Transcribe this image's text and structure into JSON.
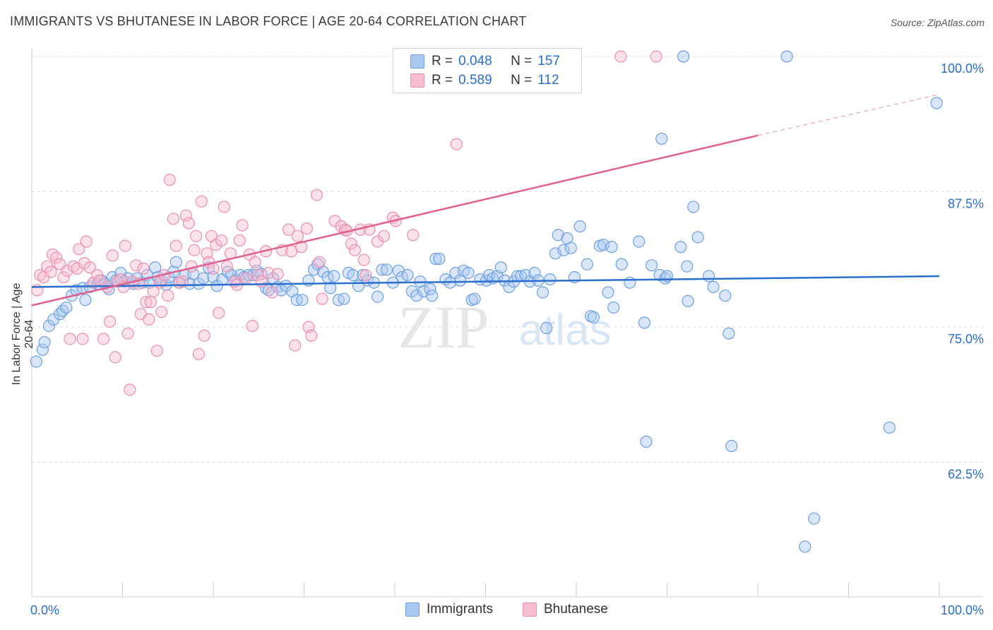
{
  "title": "IMMIGRANTS VS BHUTANESE IN LABOR FORCE | AGE 20-64 CORRELATION CHART",
  "source": "Source: ZipAtlas.com",
  "watermark": {
    "zip": "ZIP",
    "atlas": "atlas"
  },
  "colors": {
    "immigrants_fill": "#a9c8f0",
    "immigrants_stroke": "#6e9fe0",
    "immigrants_line": "#2a6fcf",
    "bhutanese_fill": "#f6bcd0",
    "bhutanese_stroke": "#ea8eb0",
    "bhutanese_line": "#e0608f",
    "tick_label": "#2a6fcf",
    "grid": "#dddddd"
  },
  "legend": {
    "r_label": "R =",
    "n_label": "N =",
    "rows": [
      {
        "r": "0.048",
        "n": "157",
        "series": "immigrants"
      },
      {
        "r": "0.589",
        "n": "112",
        "series": "bhutanese"
      }
    ]
  },
  "bottom_legend": [
    "Immigrants",
    "Bhutanese"
  ],
  "chart_data": {
    "type": "scatter",
    "ylabel": "In Labor Force | Age 20-64",
    "xlim": [
      0,
      100
    ],
    "ylim": [
      50,
      102
    ],
    "x_tick_labels": [
      "0.0%",
      "100.0%"
    ],
    "y_ticks": [
      62.5,
      75.0,
      87.5,
      100.0
    ],
    "y_tick_labels": [
      "62.5%",
      "75.0%",
      "87.5%",
      "100.0%"
    ],
    "legend_position": "top-center",
    "series": [
      {
        "name": "Immigrants",
        "trend": {
          "x0": 0,
          "y0": 78.7,
          "x1": 100,
          "y1": 79.7
        },
        "points": [
          [
            0.5,
            71.8
          ],
          [
            1.2,
            72.9
          ],
          [
            1.4,
            73.6
          ],
          [
            1.9,
            75.1
          ],
          [
            2.4,
            75.7
          ],
          [
            3.1,
            76.2
          ],
          [
            3.4,
            76.5
          ],
          [
            3.8,
            76.8
          ],
          [
            4.4,
            77.9
          ],
          [
            4.9,
            78.4
          ],
          [
            5.6,
            78.6
          ],
          [
            5.9,
            77.5
          ],
          [
            6.4,
            78.7
          ],
          [
            6.8,
            79.1
          ],
          [
            7.3,
            79.0
          ],
          [
            7.7,
            79.3
          ],
          [
            8.1,
            79.0
          ],
          [
            8.5,
            78.5
          ],
          [
            8.9,
            79.6
          ],
          [
            9.3,
            79.3
          ],
          [
            9.8,
            80.0
          ],
          [
            10.2,
            79.2
          ],
          [
            10.6,
            79.5
          ],
          [
            11.2,
            79.0
          ],
          [
            11.6,
            79.5
          ],
          [
            12.2,
            79.1
          ],
          [
            12.7,
            79.8
          ],
          [
            13.0,
            79.1
          ],
          [
            13.6,
            80.5
          ],
          [
            13.9,
            79.6
          ],
          [
            14.3,
            79.3
          ],
          [
            14.8,
            78.9
          ],
          [
            15.1,
            79.6
          ],
          [
            15.6,
            80.1
          ],
          [
            15.9,
            81.0
          ],
          [
            16.3,
            79.1
          ],
          [
            16.9,
            79.8
          ],
          [
            17.4,
            79.0
          ],
          [
            17.8,
            79.9
          ],
          [
            18.4,
            79.0
          ],
          [
            18.9,
            79.5
          ],
          [
            19.5,
            80.5
          ],
          [
            20.0,
            79.6
          ],
          [
            20.4,
            78.8
          ],
          [
            21.0,
            79.4
          ],
          [
            21.6,
            80.1
          ],
          [
            22.0,
            79.8
          ],
          [
            22.5,
            79.3
          ],
          [
            23.0,
            79.8
          ],
          [
            23.4,
            79.6
          ],
          [
            23.9,
            79.8
          ],
          [
            24.4,
            79.8
          ],
          [
            24.8,
            80.2
          ],
          [
            25.3,
            79.9
          ],
          [
            25.8,
            78.6
          ],
          [
            26.1,
            78.4
          ],
          [
            26.6,
            79.5
          ],
          [
            27.1,
            78.7
          ],
          [
            27.5,
            78.4
          ],
          [
            28.0,
            78.8
          ],
          [
            28.7,
            78.3
          ],
          [
            29.2,
            77.5
          ],
          [
            29.8,
            77.5
          ],
          [
            30.5,
            79.3
          ],
          [
            31.1,
            80.3
          ],
          [
            31.5,
            80.8
          ],
          [
            32.1,
            80.1
          ],
          [
            32.6,
            79.6
          ],
          [
            32.9,
            78.6
          ],
          [
            33.3,
            79.7
          ],
          [
            33.8,
            77.5
          ],
          [
            34.4,
            77.6
          ],
          [
            34.9,
            80.0
          ],
          [
            35.4,
            79.8
          ],
          [
            36.0,
            78.8
          ],
          [
            36.5,
            79.8
          ],
          [
            37.0,
            79.3
          ],
          [
            37.7,
            79.1
          ],
          [
            38.1,
            77.8
          ],
          [
            38.6,
            80.3
          ],
          [
            39.1,
            80.3
          ],
          [
            39.8,
            79.1
          ],
          [
            40.4,
            80.2
          ],
          [
            40.8,
            79.6
          ],
          [
            41.4,
            79.8
          ],
          [
            41.9,
            78.3
          ],
          [
            42.4,
            77.9
          ],
          [
            42.8,
            79.2
          ],
          [
            43.2,
            78.3
          ],
          [
            43.9,
            78.5
          ],
          [
            44.1,
            77.9
          ],
          [
            44.5,
            81.3
          ],
          [
            44.9,
            81.3
          ],
          [
            45.6,
            79.4
          ],
          [
            46.1,
            79.1
          ],
          [
            46.7,
            80.0
          ],
          [
            47.2,
            79.3
          ],
          [
            47.6,
            80.2
          ],
          [
            48.1,
            80.0
          ],
          [
            48.5,
            77.5
          ],
          [
            48.8,
            77.6
          ],
          [
            49.4,
            79.4
          ],
          [
            50.1,
            79.3
          ],
          [
            50.4,
            79.8
          ],
          [
            50.8,
            79.5
          ],
          [
            51.3,
            79.7
          ],
          [
            51.7,
            80.5
          ],
          [
            52.1,
            79.3
          ],
          [
            52.6,
            78.7
          ],
          [
            53.1,
            79.2
          ],
          [
            53.5,
            79.7
          ],
          [
            53.9,
            79.7
          ],
          [
            54.4,
            79.8
          ],
          [
            54.9,
            79.2
          ],
          [
            55.4,
            80.0
          ],
          [
            55.8,
            79.3
          ],
          [
            56.3,
            78.2
          ],
          [
            56.7,
            74.9
          ],
          [
            57.1,
            79.4
          ],
          [
            57.7,
            81.8
          ],
          [
            58.0,
            83.5
          ],
          [
            58.6,
            82.1
          ],
          [
            59.0,
            83.2
          ],
          [
            59.4,
            82.3
          ],
          [
            59.8,
            79.6
          ],
          [
            60.4,
            84.3
          ],
          [
            61.2,
            80.8
          ],
          [
            61.6,
            76.0
          ],
          [
            61.9,
            75.9
          ],
          [
            62.6,
            82.5
          ],
          [
            63.0,
            82.6
          ],
          [
            63.5,
            78.2
          ],
          [
            63.9,
            82.4
          ],
          [
            64.1,
            76.8
          ],
          [
            65.0,
            80.8
          ],
          [
            65.9,
            79.1
          ],
          [
            66.9,
            82.9
          ],
          [
            67.5,
            75.4
          ],
          [
            68.3,
            80.7
          ],
          [
            69.2,
            79.8
          ],
          [
            69.8,
            79.5
          ],
          [
            70.0,
            79.7
          ],
          [
            71.5,
            82.4
          ],
          [
            72.2,
            80.6
          ],
          [
            72.3,
            77.4
          ],
          [
            73.4,
            83.3
          ],
          [
            74.6,
            79.7
          ],
          [
            75.1,
            78.7
          ],
          [
            76.4,
            77.9
          ],
          [
            76.8,
            74.4
          ],
          [
            71.8,
            100.0
          ],
          [
            83.2,
            100.0
          ],
          [
            69.4,
            92.4
          ],
          [
            72.9,
            86.1
          ],
          [
            99.7,
            95.7
          ],
          [
            94.5,
            65.7
          ],
          [
            67.7,
            64.4
          ],
          [
            77.1,
            64.0
          ],
          [
            86.2,
            57.3
          ],
          [
            85.2,
            54.7
          ]
        ]
      },
      {
        "name": "Bhutanese",
        "trend": {
          "x0": 0,
          "y0": 77.0,
          "x1": 80,
          "y1": 92.7,
          "dash_to_x": 100,
          "dash_to_y": 96.5
        },
        "points": [
          [
            0.6,
            78.4
          ],
          [
            0.9,
            79.8
          ],
          [
            1.3,
            79.6
          ],
          [
            1.7,
            80.6
          ],
          [
            2.1,
            80.1
          ],
          [
            2.3,
            81.7
          ],
          [
            2.7,
            81.4
          ],
          [
            3.1,
            80.8
          ],
          [
            3.5,
            79.6
          ],
          [
            3.9,
            80.2
          ],
          [
            4.2,
            73.9
          ],
          [
            4.6,
            80.6
          ],
          [
            5.0,
            80.4
          ],
          [
            5.2,
            82.2
          ],
          [
            5.6,
            73.9
          ],
          [
            5.8,
            80.9
          ],
          [
            6.0,
            82.9
          ],
          [
            6.4,
            80.5
          ],
          [
            6.8,
            79.1
          ],
          [
            7.2,
            79.8
          ],
          [
            7.5,
            79.3
          ],
          [
            7.9,
            73.9
          ],
          [
            8.3,
            78.7
          ],
          [
            8.6,
            75.5
          ],
          [
            8.9,
            81.6
          ],
          [
            9.2,
            72.2
          ],
          [
            9.5,
            79.2
          ],
          [
            9.8,
            79.4
          ],
          [
            10.1,
            78.7
          ],
          [
            10.3,
            82.5
          ],
          [
            10.6,
            74.4
          ],
          [
            10.8,
            69.2
          ],
          [
            11.1,
            79.2
          ],
          [
            11.5,
            80.7
          ],
          [
            11.8,
            79.0
          ],
          [
            12.0,
            76.2
          ],
          [
            12.3,
            80.4
          ],
          [
            12.6,
            77.3
          ],
          [
            12.9,
            75.7
          ],
          [
            13.1,
            77.3
          ],
          [
            13.4,
            78.3
          ],
          [
            13.8,
            72.8
          ],
          [
            14.1,
            79.1
          ],
          [
            14.3,
            76.4
          ],
          [
            14.6,
            79.8
          ],
          [
            15.0,
            77.9
          ],
          [
            15.2,
            88.6
          ],
          [
            15.6,
            85.0
          ],
          [
            15.9,
            82.5
          ],
          [
            16.2,
            79.1
          ],
          [
            16.6,
            79.2
          ],
          [
            17.0,
            85.3
          ],
          [
            17.3,
            84.6
          ],
          [
            17.6,
            80.6
          ],
          [
            17.9,
            82.1
          ],
          [
            18.1,
            83.4
          ],
          [
            18.4,
            72.5
          ],
          [
            18.7,
            86.6
          ],
          [
            19.0,
            74.2
          ],
          [
            19.3,
            81.8
          ],
          [
            19.5,
            81.0
          ],
          [
            19.8,
            83.4
          ],
          [
            20.0,
            80.4
          ],
          [
            20.3,
            82.6
          ],
          [
            20.6,
            76.3
          ],
          [
            20.9,
            83.0
          ],
          [
            21.2,
            86.1
          ],
          [
            21.5,
            80.6
          ],
          [
            21.9,
            81.8
          ],
          [
            22.3,
            79.2
          ],
          [
            22.6,
            78.9
          ],
          [
            22.9,
            83.0
          ],
          [
            23.2,
            84.4
          ],
          [
            23.6,
            79.5
          ],
          [
            24.0,
            81.7
          ],
          [
            24.3,
            75.1
          ],
          [
            24.6,
            81.0
          ],
          [
            24.9,
            79.8
          ],
          [
            25.3,
            79.2
          ],
          [
            25.8,
            82.0
          ],
          [
            26.1,
            80.0
          ],
          [
            26.5,
            78.2
          ],
          [
            27.1,
            79.9
          ],
          [
            27.6,
            82.1
          ],
          [
            28.3,
            84.0
          ],
          [
            28.6,
            82.0
          ],
          [
            29.0,
            73.3
          ],
          [
            29.3,
            83.4
          ],
          [
            29.7,
            82.4
          ],
          [
            30.3,
            84.1
          ],
          [
            30.5,
            75.0
          ],
          [
            30.8,
            74.2
          ],
          [
            31.4,
            87.2
          ],
          [
            31.7,
            81.0
          ],
          [
            32.0,
            77.6
          ],
          [
            33.4,
            84.8
          ],
          [
            34.1,
            84.3
          ],
          [
            34.5,
            84.0
          ],
          [
            34.7,
            83.9
          ],
          [
            35.2,
            82.7
          ],
          [
            35.6,
            82.1
          ],
          [
            36.2,
            84.0
          ],
          [
            36.6,
            81.2
          ],
          [
            36.8,
            79.8
          ],
          [
            37.2,
            84.0
          ],
          [
            38.1,
            82.9
          ],
          [
            38.8,
            83.4
          ],
          [
            39.8,
            85.1
          ],
          [
            40.1,
            84.8
          ],
          [
            42.0,
            83.5
          ],
          [
            46.8,
            91.9
          ],
          [
            59.0,
            100.0
          ],
          [
            59.6,
            100.0
          ],
          [
            64.9,
            100.0
          ],
          [
            68.8,
            100.0
          ]
        ]
      }
    ]
  }
}
